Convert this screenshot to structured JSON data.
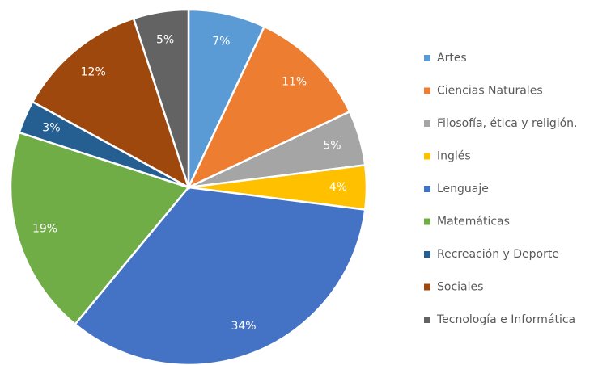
{
  "chart_data": {
    "type": "pie",
    "categories": [
      "Artes",
      "Ciencias Naturales",
      "Filosofía, ética y religión.",
      "Inglés",
      "Lenguaje",
      "Matemáticas",
      "Recreación y Deporte",
      "Sociales",
      "Tecnología e Informática"
    ],
    "values": [
      7,
      11,
      5,
      4,
      34,
      19,
      3,
      12,
      5
    ],
    "value_labels": [
      "7%",
      "11%",
      "5%",
      "4%",
      "34%",
      "19%",
      "3%",
      "12%",
      "5%"
    ],
    "colors": [
      "#5b9bd5",
      "#ed7d31",
      "#a5a5a5",
      "#ffc000",
      "#4472c4",
      "#70ad47",
      "#255e91",
      "#9e480e",
      "#636363"
    ],
    "legend": "right"
  }
}
